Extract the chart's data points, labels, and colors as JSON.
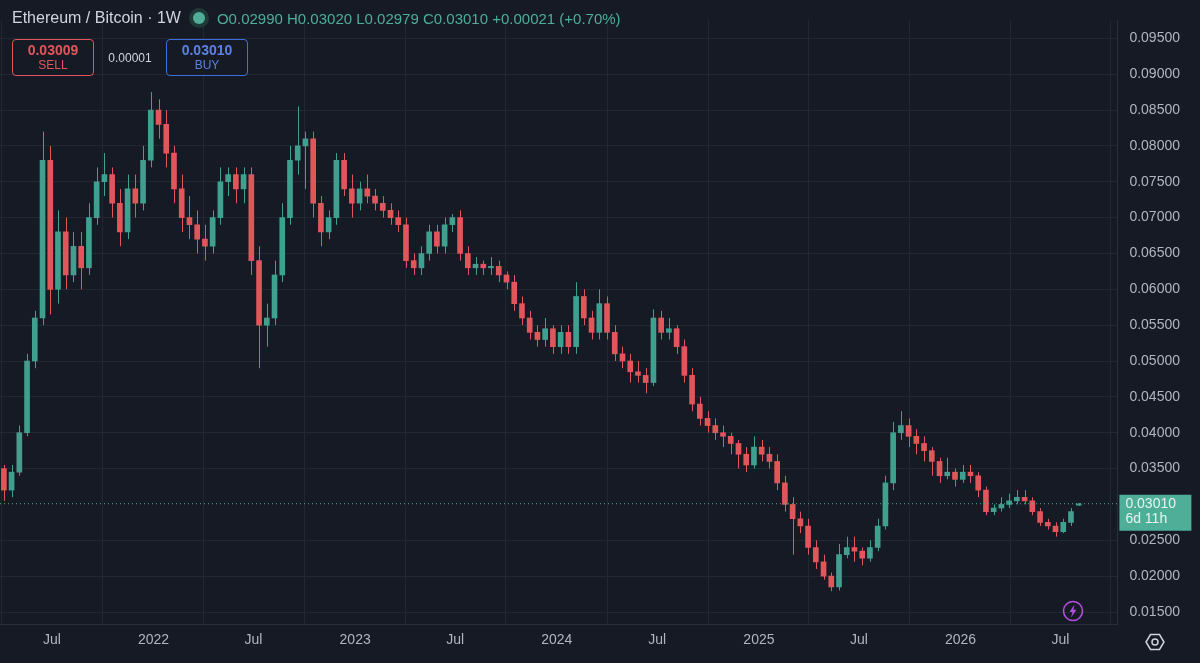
{
  "chart_data": {
    "type": "candlestick",
    "title": "Ethereum / Bitcoin · 1W",
    "annotations": [
      "O0.02990 H0.03020 L0.02979 C0.03010 +0.00021 (+0.70%)",
      "0.03009",
      "SELL",
      "0.00001",
      "0.03010",
      "BUY",
      "6d 11h"
    ],
    "x": [
      "2021-04-05",
      "2021-04-19",
      "2021-05-03",
      "2021-05-17",
      "2021-05-31",
      "2021-06-14",
      "2021-06-28",
      "2021-07-12",
      "2021-07-26",
      "2021-08-09",
      "2021-08-23",
      "2021-09-06",
      "2021-09-20",
      "2021-10-04",
      "2021-10-18",
      "2021-11-01",
      "2021-11-15",
      "2021-11-29",
      "2021-12-13",
      "2021-12-27",
      "2022-01-10",
      "2022-01-24",
      "2022-02-07",
      "2022-02-21",
      "2022-03-07",
      "2022-03-21",
      "2022-04-04",
      "2022-04-18",
      "2022-05-02",
      "2022-05-16",
      "2022-05-30",
      "2022-06-13",
      "2022-06-27",
      "2022-07-11",
      "2022-07-25",
      "2022-08-08",
      "2022-08-22",
      "2022-09-05",
      "2022-09-19",
      "2022-10-03",
      "2022-10-17",
      "2022-10-31",
      "2022-11-14",
      "2022-11-28",
      "2022-12-12",
      "2022-12-26",
      "2023-01-09",
      "2023-01-23",
      "2023-02-06",
      "2023-02-20",
      "2023-03-06",
      "2023-03-20",
      "2023-04-03",
      "2023-04-17",
      "2023-05-01",
      "2023-05-15",
      "2023-05-29",
      "2023-06-12",
      "2023-06-26",
      "2023-07-10",
      "2023-07-24",
      "2023-08-07",
      "2023-08-21",
      "2023-09-04",
      "2023-09-18",
      "2023-10-02",
      "2023-10-16",
      "2023-10-30",
      "2023-11-13",
      "2023-11-27",
      "2023-12-11",
      "2023-12-25",
      "2024-01-08",
      "2024-01-22",
      "2024-02-05",
      "2024-02-19",
      "2024-03-04",
      "2024-03-18",
      "2024-04-01",
      "2024-04-15",
      "2024-04-29",
      "2024-05-13",
      "2024-05-27",
      "2024-06-10",
      "2024-06-24",
      "2024-07-08",
      "2024-07-22",
      "2024-08-05",
      "2024-08-19",
      "2024-09-02",
      "2024-09-16",
      "2024-09-30",
      "2024-10-14",
      "2024-10-28",
      "2024-11-11",
      "2024-11-25",
      "2024-12-09",
      "2024-12-23",
      "2025-01-06",
      "2025-01-20",
      "2025-02-03",
      "2025-02-17",
      "2025-03-03",
      "2025-03-17",
      "2025-03-31",
      "2025-04-14",
      "2025-04-28",
      "2025-05-12",
      "2025-05-26",
      "2025-06-09",
      "2025-06-23",
      "2025-07-07",
      "2025-07-21",
      "2025-08-04",
      "2025-08-18",
      "2025-09-01",
      "2025-09-15",
      "2025-09-29",
      "2025-10-13",
      "2025-10-27",
      "2025-11-10",
      "2025-11-24",
      "2025-12-08",
      "2025-12-22",
      "2026-01-05",
      "2026-01-19",
      "2026-02-02",
      "2026-02-16",
      "2026-03-02",
      "2026-03-16",
      "2026-03-30",
      "2026-04-13",
      "2026-04-27",
      "2026-05-11",
      "2026-05-25",
      "2026-06-08",
      "2026-06-22",
      "2026-07-06",
      "2026-07-20",
      "2026-08-03"
    ],
    "ohlc": [
      [
        0.035,
        0.0355,
        0.0305,
        0.032
      ],
      [
        0.032,
        0.0355,
        0.031,
        0.0345
      ],
      [
        0.0345,
        0.041,
        0.034,
        0.04
      ],
      [
        0.04,
        0.051,
        0.0395,
        0.05
      ],
      [
        0.05,
        0.057,
        0.049,
        0.056
      ],
      [
        0.056,
        0.082,
        0.055,
        0.078
      ],
      [
        0.078,
        0.08,
        0.0565,
        0.06
      ],
      [
        0.06,
        0.071,
        0.058,
        0.068
      ],
      [
        0.068,
        0.07,
        0.06,
        0.062
      ],
      [
        0.062,
        0.068,
        0.061,
        0.066
      ],
      [
        0.066,
        0.068,
        0.06,
        0.063
      ],
      [
        0.063,
        0.072,
        0.062,
        0.07
      ],
      [
        0.07,
        0.077,
        0.069,
        0.075
      ],
      [
        0.075,
        0.079,
        0.073,
        0.076
      ],
      [
        0.076,
        0.077,
        0.07,
        0.072
      ],
      [
        0.072,
        0.074,
        0.066,
        0.068
      ],
      [
        0.068,
        0.076,
        0.067,
        0.074
      ],
      [
        0.074,
        0.076,
        0.07,
        0.072
      ],
      [
        0.072,
        0.08,
        0.071,
        0.078
      ],
      [
        0.078,
        0.0875,
        0.077,
        0.085
      ],
      [
        0.085,
        0.0865,
        0.081,
        0.083
      ],
      [
        0.083,
        0.085,
        0.077,
        0.079
      ],
      [
        0.079,
        0.08,
        0.072,
        0.074
      ],
      [
        0.074,
        0.076,
        0.068,
        0.07
      ],
      [
        0.07,
        0.073,
        0.067,
        0.069
      ],
      [
        0.069,
        0.071,
        0.065,
        0.067
      ],
      [
        0.067,
        0.069,
        0.064,
        0.066
      ],
      [
        0.066,
        0.071,
        0.065,
        0.07
      ],
      [
        0.07,
        0.077,
        0.069,
        0.075
      ],
      [
        0.075,
        0.077,
        0.073,
        0.076
      ],
      [
        0.076,
        0.077,
        0.072,
        0.074
      ],
      [
        0.074,
        0.077,
        0.072,
        0.076
      ],
      [
        0.076,
        0.077,
        0.062,
        0.064
      ],
      [
        0.064,
        0.066,
        0.049,
        0.055
      ],
      [
        0.055,
        0.058,
        0.052,
        0.056
      ],
      [
        0.056,
        0.064,
        0.055,
        0.062
      ],
      [
        0.062,
        0.072,
        0.061,
        0.07
      ],
      [
        0.07,
        0.08,
        0.069,
        0.078
      ],
      [
        0.078,
        0.0855,
        0.076,
        0.08
      ],
      [
        0.08,
        0.082,
        0.074,
        0.081
      ],
      [
        0.081,
        0.082,
        0.07,
        0.072
      ],
      [
        0.072,
        0.073,
        0.066,
        0.068
      ],
      [
        0.068,
        0.071,
        0.067,
        0.07
      ],
      [
        0.07,
        0.079,
        0.069,
        0.078
      ],
      [
        0.078,
        0.079,
        0.073,
        0.074
      ],
      [
        0.074,
        0.076,
        0.07,
        0.072
      ],
      [
        0.072,
        0.075,
        0.071,
        0.074
      ],
      [
        0.074,
        0.076,
        0.072,
        0.073
      ],
      [
        0.073,
        0.074,
        0.071,
        0.072
      ],
      [
        0.072,
        0.073,
        0.07,
        0.071
      ],
      [
        0.071,
        0.072,
        0.069,
        0.07
      ],
      [
        0.07,
        0.071,
        0.068,
        0.069
      ],
      [
        0.069,
        0.07,
        0.063,
        0.064
      ],
      [
        0.064,
        0.065,
        0.062,
        0.063
      ],
      [
        0.063,
        0.066,
        0.062,
        0.065
      ],
      [
        0.065,
        0.069,
        0.064,
        0.068
      ],
      [
        0.068,
        0.069,
        0.065,
        0.066
      ],
      [
        0.066,
        0.07,
        0.065,
        0.069
      ],
      [
        0.069,
        0.0705,
        0.068,
        0.07
      ],
      [
        0.07,
        0.071,
        0.064,
        0.065
      ],
      [
        0.065,
        0.066,
        0.062,
        0.063
      ],
      [
        0.063,
        0.0645,
        0.062,
        0.0635
      ],
      [
        0.0635,
        0.064,
        0.062,
        0.063
      ],
      [
        0.063,
        0.0645,
        0.062,
        0.0632
      ],
      [
        0.0632,
        0.064,
        0.061,
        0.062
      ],
      [
        0.062,
        0.0625,
        0.06,
        0.061
      ],
      [
        0.061,
        0.062,
        0.057,
        0.058
      ],
      [
        0.058,
        0.059,
        0.055,
        0.056
      ],
      [
        0.056,
        0.057,
        0.053,
        0.054
      ],
      [
        0.054,
        0.055,
        0.052,
        0.053
      ],
      [
        0.053,
        0.056,
        0.052,
        0.0545
      ],
      [
        0.0545,
        0.055,
        0.051,
        0.052
      ],
      [
        0.052,
        0.055,
        0.051,
        0.054
      ],
      [
        0.054,
        0.055,
        0.051,
        0.052
      ],
      [
        0.052,
        0.061,
        0.051,
        0.059
      ],
      [
        0.059,
        0.06,
        0.055,
        0.056
      ],
      [
        0.056,
        0.057,
        0.053,
        0.054
      ],
      [
        0.054,
        0.06,
        0.053,
        0.058
      ],
      [
        0.058,
        0.059,
        0.053,
        0.054
      ],
      [
        0.054,
        0.055,
        0.05,
        0.051
      ],
      [
        0.051,
        0.052,
        0.049,
        0.05
      ],
      [
        0.05,
        0.051,
        0.047,
        0.0485
      ],
      [
        0.0485,
        0.05,
        0.047,
        0.048
      ],
      [
        0.048,
        0.049,
        0.0455,
        0.047
      ],
      [
        0.047,
        0.0572,
        0.0465,
        0.056
      ],
      [
        0.056,
        0.057,
        0.053,
        0.054
      ],
      [
        0.054,
        0.056,
        0.053,
        0.0545
      ],
      [
        0.0545,
        0.055,
        0.051,
        0.052
      ],
      [
        0.052,
        0.053,
        0.047,
        0.048
      ],
      [
        0.048,
        0.049,
        0.043,
        0.044
      ],
      [
        0.044,
        0.045,
        0.041,
        0.042
      ],
      [
        0.042,
        0.043,
        0.04,
        0.041
      ],
      [
        0.041,
        0.042,
        0.039,
        0.04
      ],
      [
        0.04,
        0.041,
        0.038,
        0.0395
      ],
      [
        0.0395,
        0.04,
        0.037,
        0.0385
      ],
      [
        0.0385,
        0.039,
        0.035,
        0.037
      ],
      [
        0.037,
        0.038,
        0.0345,
        0.0355
      ],
      [
        0.0355,
        0.0395,
        0.035,
        0.038
      ],
      [
        0.038,
        0.039,
        0.036,
        0.037
      ],
      [
        0.037,
        0.038,
        0.035,
        0.036
      ],
      [
        0.036,
        0.037,
        0.032,
        0.033
      ],
      [
        0.033,
        0.034,
        0.029,
        0.03
      ],
      [
        0.03,
        0.031,
        0.023,
        0.028
      ],
      [
        0.028,
        0.029,
        0.026,
        0.027
      ],
      [
        0.027,
        0.028,
        0.023,
        0.024
      ],
      [
        0.024,
        0.025,
        0.021,
        0.022
      ],
      [
        0.022,
        0.023,
        0.0195,
        0.02
      ],
      [
        0.02,
        0.0205,
        0.0179,
        0.0185
      ],
      [
        0.0185,
        0.0245,
        0.018,
        0.023
      ],
      [
        0.023,
        0.0255,
        0.0225,
        0.024
      ],
      [
        0.024,
        0.0255,
        0.022,
        0.0235
      ],
      [
        0.0235,
        0.024,
        0.0215,
        0.0225
      ],
      [
        0.0225,
        0.025,
        0.022,
        0.024
      ],
      [
        0.024,
        0.028,
        0.0235,
        0.027
      ],
      [
        0.027,
        0.034,
        0.0265,
        0.033
      ],
      [
        0.033,
        0.0415,
        0.032,
        0.04
      ],
      [
        0.04,
        0.043,
        0.039,
        0.041
      ],
      [
        0.041,
        0.042,
        0.038,
        0.0395
      ],
      [
        0.0395,
        0.0405,
        0.037,
        0.0385
      ],
      [
        0.0385,
        0.0395,
        0.036,
        0.0375
      ],
      [
        0.0375,
        0.038,
        0.034,
        0.036
      ],
      [
        0.036,
        0.0365,
        0.033,
        0.034
      ],
      [
        0.034,
        0.0365,
        0.0335,
        0.0345
      ],
      [
        0.0345,
        0.035,
        0.0325,
        0.0335
      ],
      [
        0.0335,
        0.0355,
        0.033,
        0.0345
      ],
      [
        0.0345,
        0.0355,
        0.033,
        0.034
      ],
      [
        0.034,
        0.0345,
        0.031,
        0.032
      ],
      [
        0.032,
        0.0325,
        0.0285,
        0.029
      ],
      [
        0.029,
        0.03,
        0.0285,
        0.0295
      ],
      [
        0.0295,
        0.031,
        0.029,
        0.03
      ],
      [
        0.03,
        0.0315,
        0.0295,
        0.0305
      ],
      [
        0.0305,
        0.032,
        0.03,
        0.031
      ],
      [
        0.031,
        0.032,
        0.03,
        0.0305
      ],
      [
        0.0305,
        0.031,
        0.0285,
        0.029
      ],
      [
        0.029,
        0.0295,
        0.027,
        0.0275
      ],
      [
        0.0275,
        0.028,
        0.0265,
        0.027
      ],
      [
        0.027,
        0.0275,
        0.0255,
        0.0262
      ],
      [
        0.0262,
        0.028,
        0.026,
        0.0275
      ],
      [
        0.0275,
        0.0295,
        0.027,
        0.029
      ],
      [
        0.0299,
        0.0302,
        0.02979,
        0.0301
      ]
    ],
    "colors": [
      "#e0565b",
      "#3fa08f",
      "#3fa08f",
      "#3fa08f",
      "#3fa08f",
      "#3fa08f",
      "#e0565b",
      "#3fa08f",
      "#e0565b",
      "#3fa08f",
      "#e0565b",
      "#3fa08f",
      "#3fa08f",
      "#3fa08f",
      "#e0565b",
      "#e0565b",
      "#3fa08f",
      "#e0565b",
      "#3fa08f",
      "#3fa08f",
      "#e0565b",
      "#e0565b",
      "#e0565b",
      "#e0565b",
      "#e0565b",
      "#e0565b",
      "#e0565b",
      "#3fa08f",
      "#3fa08f",
      "#3fa08f",
      "#e0565b",
      "#3fa08f",
      "#e0565b",
      "#e0565b",
      "#3fa08f",
      "#3fa08f",
      "#3fa08f",
      "#3fa08f",
      "#3fa08f",
      "#3fa08f",
      "#e0565b",
      "#e0565b",
      "#3fa08f",
      "#3fa08f",
      "#e0565b",
      "#e0565b",
      "#3fa08f",
      "#e0565b",
      "#e0565b",
      "#e0565b",
      "#e0565b",
      "#e0565b",
      "#e0565b",
      "#e0565b",
      "#3fa08f",
      "#3fa08f",
      "#e0565b",
      "#3fa08f",
      "#3fa08f",
      "#e0565b",
      "#e0565b",
      "#3fa08f",
      "#e0565b",
      "#3fa08f",
      "#e0565b",
      "#e0565b",
      "#e0565b",
      "#e0565b",
      "#e0565b",
      "#e0565b",
      "#3fa08f",
      "#e0565b",
      "#3fa08f",
      "#e0565b",
      "#3fa08f",
      "#e0565b",
      "#e0565b",
      "#3fa08f",
      "#e0565b",
      "#e0565b",
      "#e0565b",
      "#e0565b",
      "#e0565b",
      "#e0565b",
      "#3fa08f",
      "#e0565b",
      "#3fa08f",
      "#e0565b",
      "#e0565b",
      "#e0565b",
      "#e0565b",
      "#e0565b",
      "#e0565b",
      "#e0565b",
      "#e0565b",
      "#e0565b",
      "#e0565b",
      "#3fa08f",
      "#e0565b",
      "#e0565b",
      "#e0565b",
      "#e0565b",
      "#e0565b",
      "#e0565b",
      "#e0565b",
      "#e0565b",
      "#e0565b",
      "#e0565b",
      "#3fa08f",
      "#3fa08f",
      "#e0565b",
      "#e0565b",
      "#3fa08f",
      "#3fa08f",
      "#3fa08f",
      "#3fa08f",
      "#3fa08f",
      "#e0565b",
      "#e0565b",
      "#e0565b",
      "#e0565b",
      "#e0565b",
      "#3fa08f",
      "#e0565b",
      "#3fa08f",
      "#e0565b",
      "#e0565b",
      "#e0565b",
      "#3fa08f",
      "#3fa08f",
      "#3fa08f",
      "#3fa08f",
      "#e0565b",
      "#e0565b",
      "#e0565b",
      "#e0565b",
      "#e0565b",
      "#3fa08f",
      "#3fa08f",
      "#3fa08f"
    ],
    "xlim": [
      "2021-03-29",
      "2026-10-12"
    ],
    "xticks": [
      {
        "value": "2021-07-01",
        "label": "Jul"
      },
      {
        "value": "2022-01-01",
        "label": "2022"
      },
      {
        "value": "2022-07-01",
        "label": "Jul"
      },
      {
        "value": "2023-01-01",
        "label": "2023"
      },
      {
        "value": "2023-07-01",
        "label": "Jul"
      },
      {
        "value": "2024-01-01",
        "label": "2024"
      },
      {
        "value": "2024-07-01",
        "label": "Jul"
      },
      {
        "value": "2025-01-01",
        "label": "2025"
      },
      {
        "value": "2025-07-01",
        "label": "Jul"
      },
      {
        "value": "2026-01-01",
        "label": "2026"
      },
      {
        "value": "2026-07-01",
        "label": "Jul"
      }
    ],
    "ylim": [
      0.0133,
      0.0975
    ],
    "yticks": [
      {
        "value": 0.015,
        "label": "0.01500"
      },
      {
        "value": 0.02,
        "label": "0.02000"
      },
      {
        "value": 0.025,
        "label": "0.02500"
      },
      {
        "value": 0.035,
        "label": "0.03500"
      },
      {
        "value": 0.04,
        "label": "0.04000"
      },
      {
        "value": 0.045,
        "label": "0.04500"
      },
      {
        "value": 0.05,
        "label": "0.05000"
      },
      {
        "value": 0.055,
        "label": "0.05500"
      },
      {
        "value": 0.06,
        "label": "0.06000"
      },
      {
        "value": 0.065,
        "label": "0.06500"
      },
      {
        "value": 0.07,
        "label": "0.07000"
      },
      {
        "value": 0.075,
        "label": "0.07500"
      },
      {
        "value": 0.08,
        "label": "0.08000"
      },
      {
        "value": 0.085,
        "label": "0.08500"
      },
      {
        "value": 0.09,
        "label": "0.09000"
      },
      {
        "value": 0.095,
        "label": "0.09500"
      }
    ],
    "ref_lines": [
      {
        "axis": "y",
        "value": 0.0301,
        "label": "0.03010",
        "color": "#4fae98",
        "line_style": "dotted"
      }
    ],
    "grid": true,
    "legend": false
  }
}
